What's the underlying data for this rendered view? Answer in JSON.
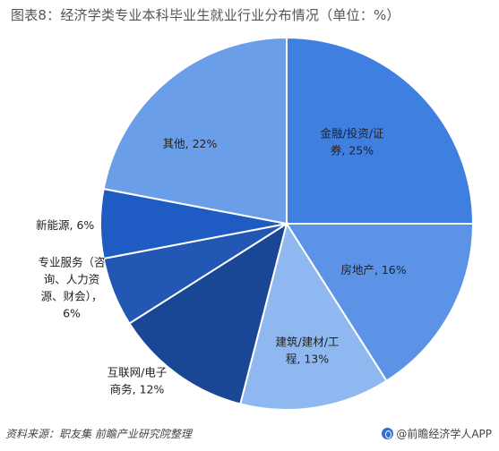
{
  "title": "图表8：经济学类专业本科毕业生就业行业分布情况（单位：%）",
  "chart_data": {
    "type": "pie",
    "slices": [
      {
        "label": "金融/投资/证券",
        "lines": [
          "金融/投资/证",
          "券, 25%"
        ],
        "value": 25,
        "color": "#3f7fe0",
        "text_inside": true
      },
      {
        "label": "房地产",
        "lines": [
          "房地产, 16%"
        ],
        "value": 16,
        "color": "#5c93e6",
        "text_inside": true
      },
      {
        "label": "建筑/建材/工程",
        "lines": [
          "建筑/建材/工",
          "程, 13%"
        ],
        "value": 13,
        "color": "#8fb8f0",
        "text_inside": true
      },
      {
        "label": "互联网/电子商务",
        "lines": [
          "互联网/电子",
          "商务, 12%"
        ],
        "value": 12,
        "color": "#1a4696",
        "text_inside": false
      },
      {
        "label": "专业服务（咨询、人力资源、财会）",
        "lines": [
          "专业服务（咨",
          "询、人力资",
          "源、财会），",
          "6%"
        ],
        "value": 6,
        "color": "#2257b4",
        "text_inside": false
      },
      {
        "label": "新能源",
        "lines": [
          "新能源, 6%"
        ],
        "value": 6,
        "color": "#1e5cc4",
        "text_inside": false
      },
      {
        "label": "其他",
        "lines": [
          "其他, 22%"
        ],
        "value": 22,
        "color": "#6b9ee8",
        "text_inside": true
      }
    ]
  },
  "footer": {
    "source": "资料来源：职友集  前瞻产业研究院整理",
    "brand": "@前瞻经济学人APP"
  }
}
